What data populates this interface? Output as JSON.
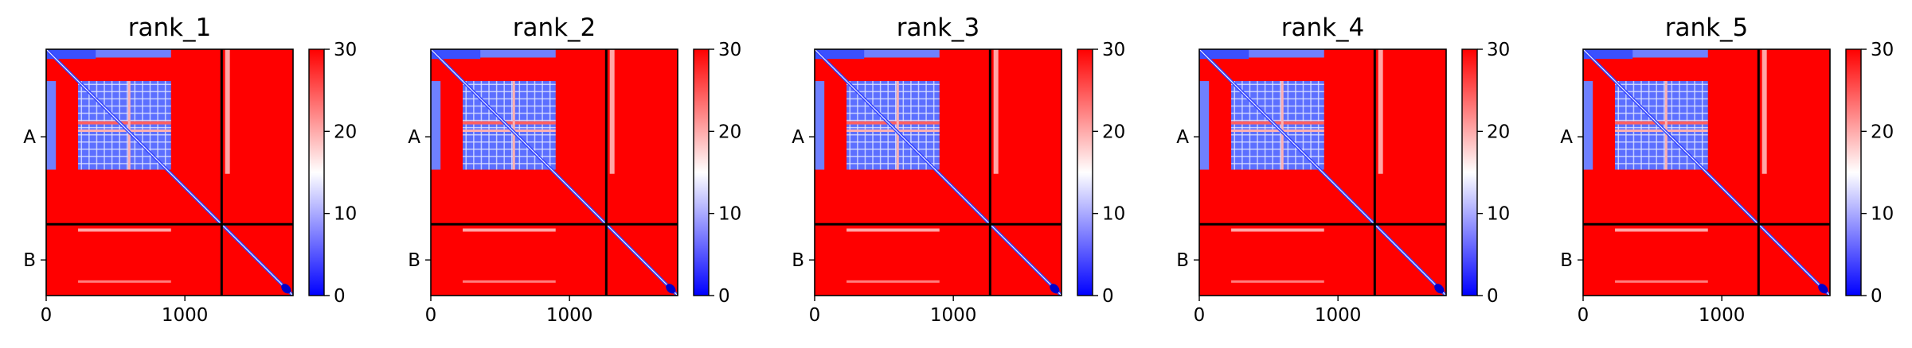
{
  "chart_data": [
    {
      "type": "heatmap",
      "title": "rank_1",
      "chains": [
        "A",
        "B"
      ],
      "x_ticks": [
        0,
        1000
      ],
      "xlim": [
        0,
        1780
      ],
      "chain_boundary": 1265,
      "colorbar": {
        "ticks": [
          0,
          10,
          20,
          30
        ],
        "range": [
          0,
          30
        ],
        "colormap": "bwr"
      }
    },
    {
      "type": "heatmap",
      "title": "rank_2",
      "chains": [
        "A",
        "B"
      ],
      "x_ticks": [
        0,
        1000
      ],
      "xlim": [
        0,
        1780
      ],
      "chain_boundary": 1265,
      "colorbar": {
        "ticks": [
          0,
          10,
          20,
          30
        ],
        "range": [
          0,
          30
        ],
        "colormap": "bwr"
      }
    },
    {
      "type": "heatmap",
      "title": "rank_3",
      "chains": [
        "A",
        "B"
      ],
      "x_ticks": [
        0,
        1000
      ],
      "xlim": [
        0,
        1780
      ],
      "chain_boundary": 1265,
      "colorbar": {
        "ticks": [
          0,
          10,
          20,
          30
        ],
        "range": [
          0,
          30
        ],
        "colormap": "bwr"
      }
    },
    {
      "type": "heatmap",
      "title": "rank_4",
      "chains": [
        "A",
        "B"
      ],
      "x_ticks": [
        0,
        1000
      ],
      "xlim": [
        0,
        1780
      ],
      "chain_boundary": 1265,
      "colorbar": {
        "ticks": [
          0,
          10,
          20,
          30
        ],
        "range": [
          0,
          30
        ],
        "colormap": "bwr"
      }
    },
    {
      "type": "heatmap",
      "title": "rank_5",
      "chains": [
        "A",
        "B"
      ],
      "x_ticks": [
        0,
        1000
      ],
      "xlim": [
        0,
        1780
      ],
      "chain_boundary": 1265,
      "colorbar": {
        "ticks": [
          0,
          10,
          20,
          30
        ],
        "range": [
          0,
          30
        ],
        "colormap": "bwr"
      }
    }
  ]
}
